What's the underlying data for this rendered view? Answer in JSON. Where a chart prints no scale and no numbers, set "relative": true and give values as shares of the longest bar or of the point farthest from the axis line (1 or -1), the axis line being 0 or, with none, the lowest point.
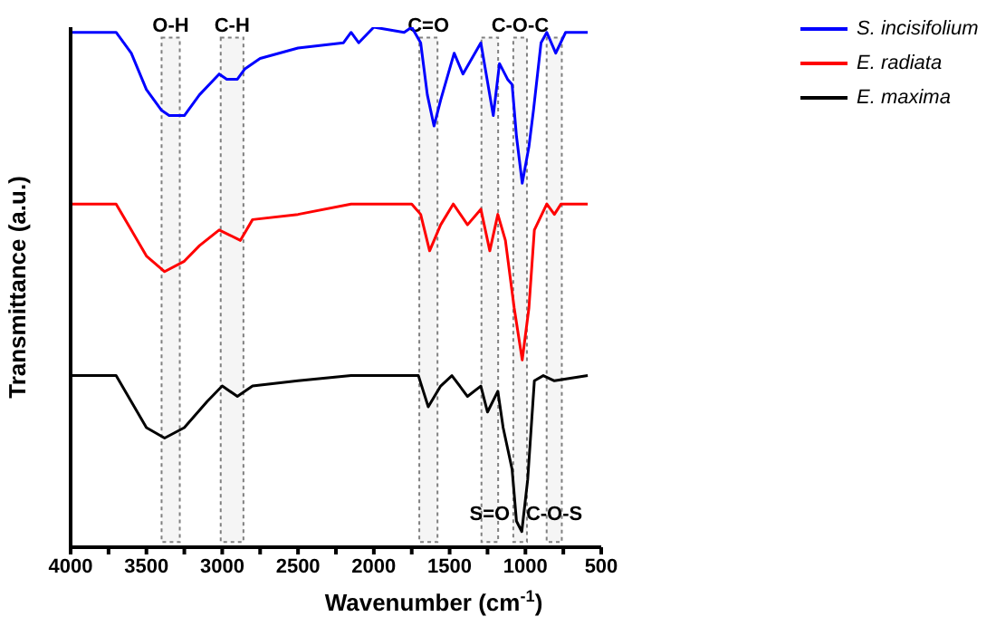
{
  "chart_data": {
    "type": "line",
    "xlabel": "Wavenumber (cm$^{-1}$)",
    "ylabel": "Transmittance (a.u.)",
    "relative": true,
    "xlim": [
      4000,
      500
    ],
    "xticks": [
      4000,
      {
        "value": 3750,
        "label": null
      },
      3500,
      {
        "value": 3250,
        "label": null
      },
      3000,
      {
        "value": 2750,
        "label": null
      },
      2500,
      {
        "value": 2250,
        "label": null
      },
      2000,
      {
        "value": 1750,
        "label": null
      },
      1500,
      {
        "value": 1250,
        "label": null
      },
      1000,
      {
        "value": 750,
        "label": null
      },
      500
    ],
    "legend": "top right",
    "line_style": "solid",
    "marker": "none",
    "series": [
      {
        "name": "S. incisifolium",
        "color": "#0000ff",
        "x": [
          4000,
          3700,
          3600,
          3500,
          3400,
          3350,
          3250,
          3150,
          3020,
          2970,
          2900,
          2850,
          2750,
          2500,
          2200,
          2150,
          2100,
          2000,
          1800,
          1750,
          1691,
          1647,
          1603,
          1559,
          1470,
          1412,
          1294,
          1212,
          1171,
          1118,
          1088,
          1059,
          1021,
          977,
          947,
          897,
          859,
          800,
          735,
          589
        ],
        "values": [
          0.99,
          0.99,
          0.95,
          0.88,
          0.84,
          0.83,
          0.83,
          0.87,
          0.91,
          0.9,
          0.9,
          0.92,
          0.94,
          0.96,
          0.97,
          0.99,
          0.97,
          1.0,
          0.99,
          1.0,
          0.97,
          0.87,
          0.81,
          0.86,
          0.95,
          0.91,
          0.97,
          0.83,
          0.93,
          0.9,
          0.89,
          0.79,
          0.7,
          0.77,
          0.84,
          0.97,
          0.99,
          0.95,
          0.99,
          0.99
        ]
      },
      {
        "name": "E. radiata",
        "color": "#ff0000",
        "x": [
          4000,
          3700,
          3600,
          3500,
          3380,
          3250,
          3150,
          3020,
          2950,
          2880,
          2800,
          2500,
          2150,
          2000,
          1750,
          1691,
          1632,
          1559,
          1476,
          1382,
          1294,
          1235,
          1182,
          1132,
          1074,
          1021,
          977,
          941,
          859,
          809,
          765,
          589
        ],
        "values": [
          0.66,
          0.66,
          0.61,
          0.56,
          0.53,
          0.55,
          0.58,
          0.61,
          0.6,
          0.59,
          0.63,
          0.64,
          0.66,
          0.66,
          0.66,
          0.64,
          0.57,
          0.62,
          0.66,
          0.62,
          0.65,
          0.57,
          0.64,
          0.59,
          0.46,
          0.36,
          0.46,
          0.61,
          0.66,
          0.64,
          0.66,
          0.66
        ]
      },
      {
        "name": "E. maxima",
        "color": "#000000",
        "x": [
          4000,
          3700,
          3600,
          3500,
          3380,
          3250,
          3100,
          3000,
          2900,
          2800,
          2500,
          2150,
          1706,
          1641,
          1559,
          1485,
          1382,
          1294,
          1250,
          1182,
          1147,
          1088,
          1059,
          1024,
          985,
          941,
          882,
          809,
          589
        ],
        "values": [
          0.33,
          0.33,
          0.28,
          0.23,
          0.21,
          0.23,
          0.28,
          0.31,
          0.29,
          0.31,
          0.32,
          0.33,
          0.33,
          0.27,
          0.31,
          0.33,
          0.29,
          0.31,
          0.26,
          0.3,
          0.23,
          0.15,
          0.05,
          0.03,
          0.13,
          0.32,
          0.33,
          0.32,
          0.33
        ]
      }
    ],
    "bands": [
      {
        "axis": "x",
        "from": 3400,
        "to": 3280,
        "label": "O-H",
        "color": "#808080"
      },
      {
        "axis": "x",
        "from": 3010,
        "to": 2860,
        "label": "C-H",
        "color": "#808080"
      },
      {
        "axis": "x",
        "from": 1700,
        "to": 1580,
        "label": "C=O",
        "color": "#808080"
      },
      {
        "axis": "x",
        "from": 1290,
        "to": 1180,
        "label": "S=O",
        "color": "#808080"
      },
      {
        "axis": "x",
        "from": 1080,
        "to": 990,
        "label": "C-O-C",
        "color": "#808080"
      },
      {
        "axis": "x",
        "from": 860,
        "to": 760,
        "label": "C-O-S",
        "color": "#808080"
      }
    ]
  }
}
